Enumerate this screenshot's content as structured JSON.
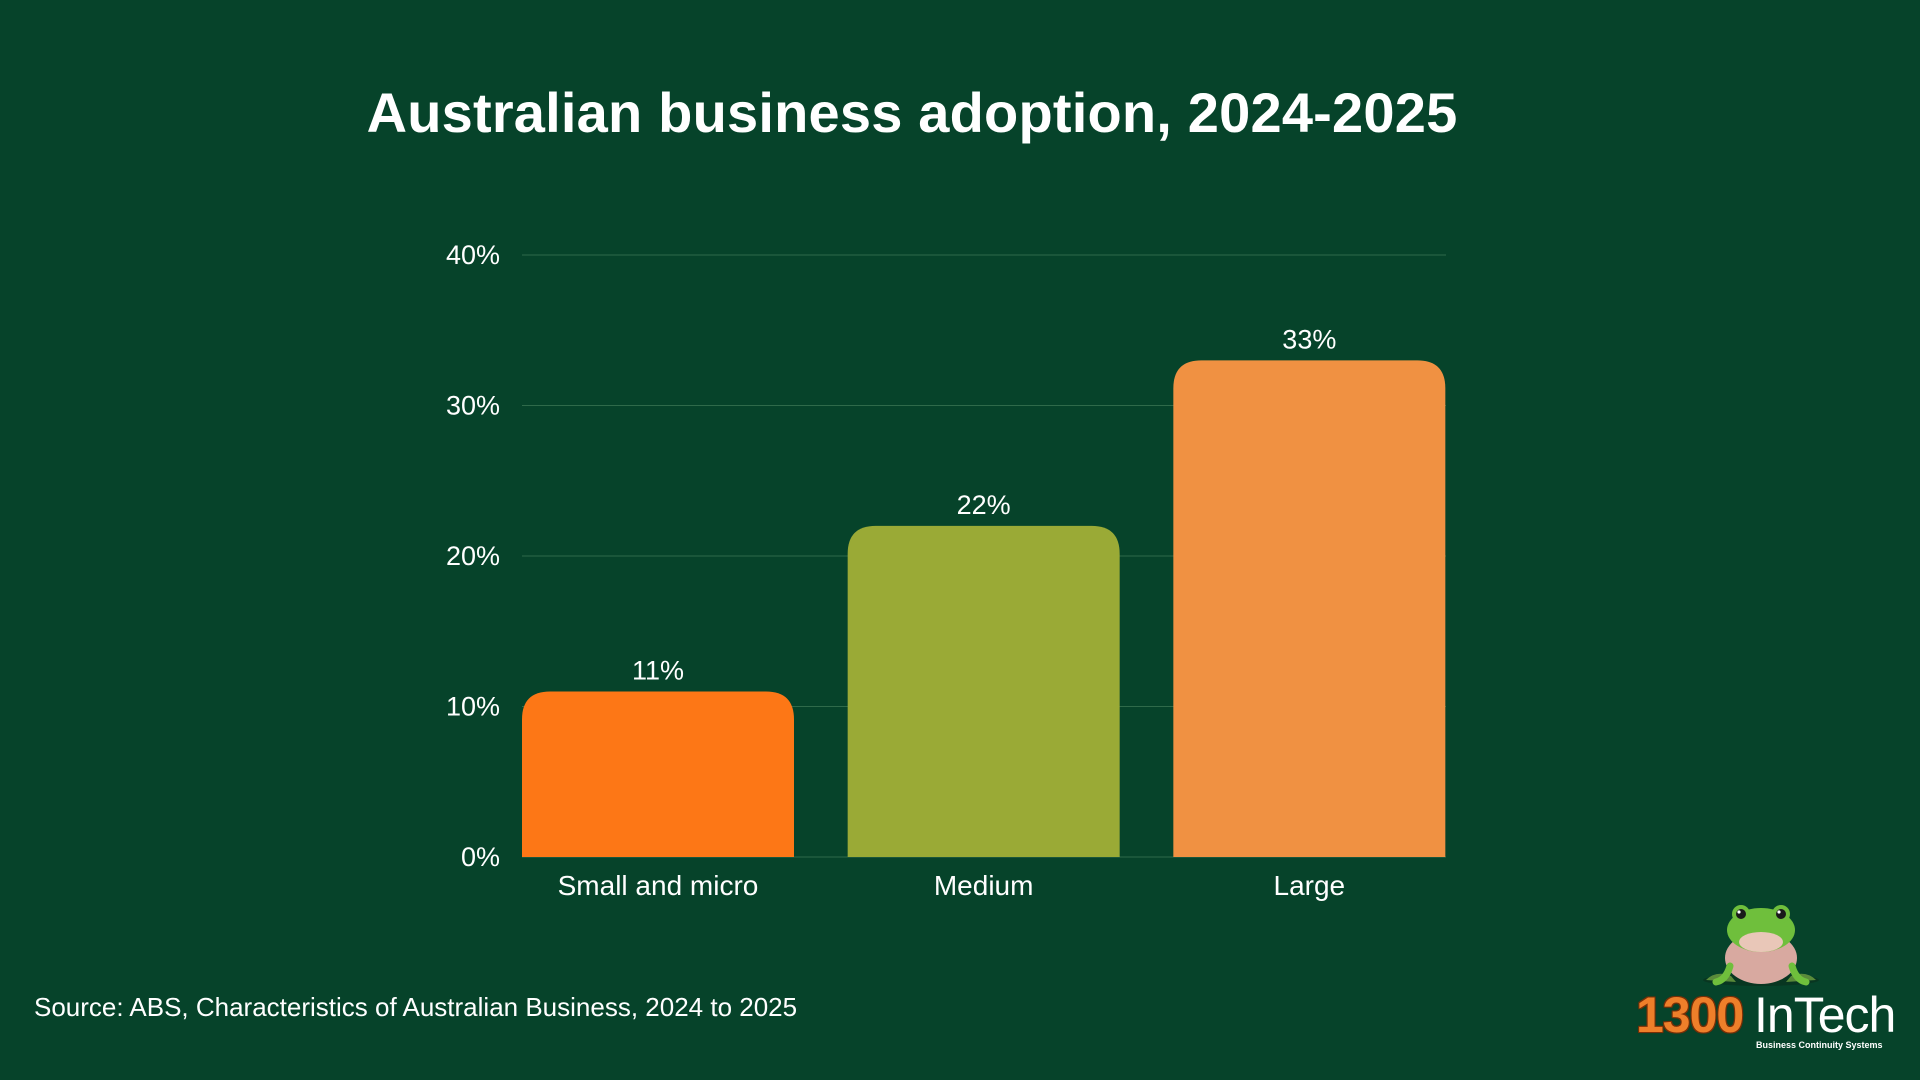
{
  "chart_data": {
    "type": "bar",
    "title": "Australian business adoption, 2024-2025",
    "categories": [
      "Small and micro",
      "Medium",
      "Large"
    ],
    "values": [
      11,
      22,
      33
    ],
    "data_labels": [
      "11%",
      "22%",
      "33%"
    ],
    "colors": [
      "#fd7716",
      "#9aaa36",
      "#f09142"
    ],
    "ylim": [
      0,
      40
    ],
    "yticks": [
      0,
      10,
      20,
      30,
      40
    ],
    "ytick_labels": [
      "0%",
      "10%",
      "20%",
      "30%",
      "40%"
    ],
    "xlabel": "",
    "ylabel": "",
    "grid": true,
    "legend": "none"
  },
  "footer": {
    "source": "Source: ABS, Characteristics of Australian Business, 2024 to 2025"
  },
  "logo": {
    "number": "1300",
    "name": "InTech",
    "tagline": "Business Continuity Systems",
    "icon": "frog-icon",
    "brand_color": "#ee7f2a"
  },
  "theme": {
    "background": "#06432a",
    "gridline": "#2f6a4a",
    "text": "#ffffff"
  }
}
